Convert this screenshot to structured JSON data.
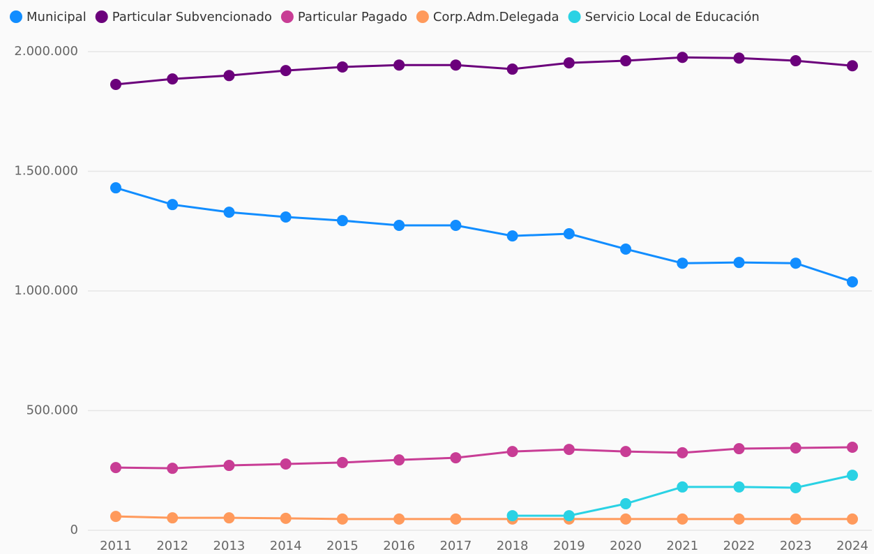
{
  "chart_data": {
    "type": "line",
    "categories": [
      "2011",
      "2012",
      "2013",
      "2014",
      "2015",
      "2016",
      "2017",
      "2018",
      "2019",
      "2020",
      "2021",
      "2022",
      "2023",
      "2024"
    ],
    "series": [
      {
        "name": "Municipal",
        "color": "#118dff",
        "values": [
          1431000,
          1361000,
          1329000,
          1309000,
          1294000,
          1274000,
          1274000,
          1230000,
          1239000,
          1175000,
          1116000,
          1119000,
          1116000,
          1038000
        ]
      },
      {
        "name": "Particular Subvencionado",
        "color": "#6b007b",
        "values": [
          1863000,
          1886000,
          1900000,
          1921000,
          1936000,
          1944000,
          1944000,
          1927000,
          1953000,
          1962000,
          1976000,
          1973000,
          1962000,
          1941000
        ]
      },
      {
        "name": "Particular Pagado",
        "color": "#c83d95",
        "values": [
          262000,
          259000,
          271000,
          277000,
          283000,
          294000,
          303000,
          329000,
          338000,
          329000,
          324000,
          341000,
          344000,
          347000
        ]
      },
      {
        "name": "Corp.Adm.Delegada",
        "color": "#ff9a5c",
        "values": [
          58000,
          52000,
          52000,
          50000,
          47000,
          47000,
          47000,
          47000,
          47000,
          47000,
          47000,
          47000,
          47000,
          47000
        ]
      },
      {
        "name": "Servicio Local de Educación",
        "color": "#2ad2e4",
        "values": [
          null,
          null,
          null,
          null,
          null,
          null,
          null,
          61000,
          61000,
          111000,
          181000,
          181000,
          178000,
          230000
        ]
      }
    ],
    "ylim": [
      0,
      2000000
    ],
    "yticks": [
      0,
      {
        "value": 500000,
        "label": "500.000"
      },
      {
        "value": 1000000,
        "label": "1.000.000"
      },
      {
        "value": 1500000,
        "label": "1.500.000"
      },
      {
        "value": 2000000,
        "label": "2.000.000"
      }
    ],
    "grid": true,
    "legend": "top-left"
  }
}
